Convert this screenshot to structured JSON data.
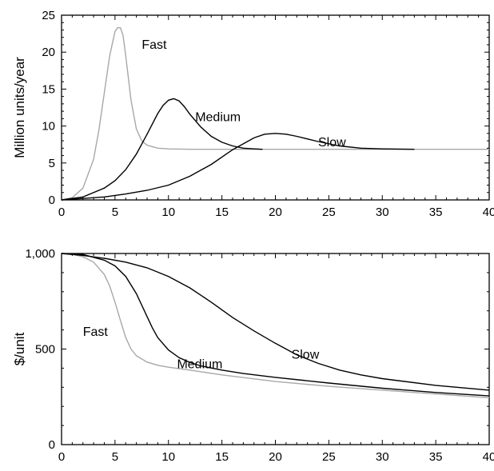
{
  "chart_data": [
    {
      "type": "line",
      "xlabel": "",
      "ylabel": "Million units/year",
      "xlim": [
        0,
        40
      ],
      "ylim": [
        0,
        25
      ],
      "xticks": [
        0,
        5,
        10,
        15,
        20,
        25,
        30,
        35,
        40
      ],
      "xtick_labels": [
        "0",
        "5",
        "10",
        "15",
        "20",
        "25",
        "30",
        "35",
        "40"
      ],
      "yticks": [
        0,
        5,
        10,
        15,
        20,
        25
      ],
      "ytick_labels": [
        "0",
        "5",
        "10",
        "15",
        "20",
        "25"
      ],
      "grid": false,
      "series": [
        {
          "name": "Fast",
          "color": "#a8a8a8",
          "label_at": [
            7.5,
            21
          ],
          "x": [
            0,
            1,
            2,
            3,
            3.5,
            4,
            4.5,
            5,
            5.25,
            5.5,
            5.75,
            6,
            6.25,
            6.5,
            7,
            7.5,
            8,
            9,
            10,
            12,
            15,
            20,
            25,
            30,
            35,
            40
          ],
          "y": [
            0,
            0.3,
            1.6,
            5.5,
            9.5,
            14.5,
            19.5,
            22.8,
            23.3,
            23.3,
            22.3,
            19.5,
            16.5,
            13.5,
            9.6,
            8.0,
            7.4,
            7.0,
            6.9,
            6.85,
            6.85,
            6.85,
            6.85,
            6.85,
            6.85,
            6.85
          ]
        },
        {
          "name": "Medium",
          "color": "#000000",
          "label_at": [
            12.5,
            11.2
          ],
          "x": [
            0,
            2,
            4,
            5,
            6,
            7,
            8,
            9,
            9.5,
            10,
            10.5,
            11,
            11.5,
            12,
            13,
            14,
            15,
            16,
            17,
            18,
            18.8
          ],
          "y": [
            0,
            0.4,
            1.6,
            2.6,
            4.1,
            6.2,
            8.9,
            11.7,
            12.8,
            13.5,
            13.7,
            13.4,
            12.6,
            11.6,
            9.9,
            8.6,
            7.8,
            7.3,
            7.0,
            6.9,
            6.85
          ]
        },
        {
          "name": "Slow",
          "color": "#000000",
          "label_at": [
            24,
            7.8
          ],
          "x": [
            0,
            2,
            4,
            6,
            8,
            10,
            12,
            14,
            16,
            18,
            19,
            20,
            21,
            22,
            24,
            26,
            28,
            30,
            33
          ],
          "y": [
            0,
            0.2,
            0.4,
            0.8,
            1.3,
            2.0,
            3.2,
            4.8,
            6.8,
            8.4,
            8.9,
            9.0,
            8.9,
            8.6,
            7.9,
            7.3,
            7.0,
            6.9,
            6.85
          ]
        }
      ]
    },
    {
      "type": "line",
      "xlabel": "",
      "ylabel": "$/unit",
      "xlim": [
        0,
        40
      ],
      "ylim": [
        0,
        1000
      ],
      "xticks": [
        0,
        5,
        10,
        15,
        20,
        25,
        30,
        35,
        40
      ],
      "xtick_labels": [
        "0",
        "5",
        "10",
        "15",
        "20",
        "25",
        "30",
        "35",
        "40"
      ],
      "yticks": [
        0,
        500,
        1000
      ],
      "ytick_labels": [
        "0",
        "500",
        "1,000"
      ],
      "grid": false,
      "series": [
        {
          "name": "Fast",
          "color": "#a8a8a8",
          "label_at": [
            2,
            590
          ],
          "x": [
            0,
            1,
            2,
            3,
            4,
            4.5,
            5,
            5.5,
            6,
            6.5,
            7,
            8,
            9,
            10,
            12,
            15,
            20,
            25,
            30,
            35,
            40
          ],
          "y": [
            1000,
            996,
            983,
            955,
            890,
            830,
            745,
            650,
            560,
            500,
            465,
            432,
            415,
            405,
            390,
            365,
            330,
            305,
            285,
            265,
            245
          ]
        },
        {
          "name": "Medium",
          "color": "#000000",
          "label_at": [
            10.8,
            420
          ],
          "x": [
            0,
            2,
            4,
            5,
            6,
            7,
            8,
            8.5,
            9,
            10,
            11,
            12,
            13,
            15,
            17,
            20,
            25,
            30,
            35,
            40
          ],
          "y": [
            1000,
            995,
            965,
            935,
            880,
            790,
            670,
            610,
            560,
            495,
            455,
            430,
            412,
            390,
            372,
            352,
            322,
            295,
            273,
            255
          ]
        },
        {
          "name": "Slow",
          "color": "#000000",
          "label_at": [
            21.5,
            470
          ],
          "x": [
            0,
            2,
            4,
            6,
            8,
            10,
            12,
            14,
            16,
            18,
            20,
            22,
            24,
            26,
            28,
            30,
            35,
            40
          ],
          "y": [
            1000,
            990,
            975,
            955,
            925,
            880,
            820,
            745,
            665,
            595,
            530,
            470,
            425,
            390,
            365,
            345,
            310,
            285
          ]
        }
      ]
    }
  ]
}
